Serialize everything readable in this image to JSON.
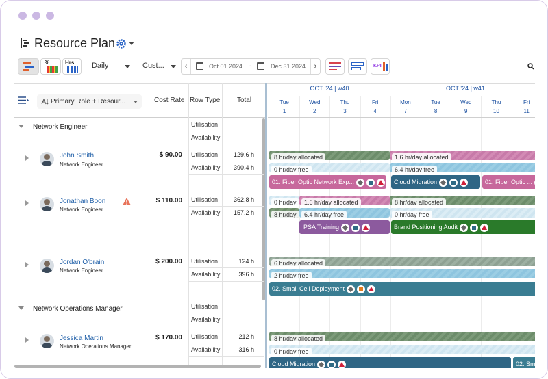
{
  "header": {
    "title": "Resource Plan"
  },
  "toolbar": {
    "percent_icon": "%",
    "hours_icon": "Hrs",
    "view": "Daily",
    "range": "Cust...",
    "start_date": "Oct 01 2024",
    "date_separator": "-",
    "end_date": "Dec 31 2024",
    "kpi_icon": "KPI"
  },
  "grid": {
    "group_by": "Primary Role + Resour...",
    "columns": [
      "Cost Rate",
      "Row Type",
      "Total"
    ]
  },
  "timeline": {
    "weeks": [
      "OCT '24 | w40",
      "OCT '24 | w41"
    ],
    "days": [
      {
        "name": "Tue",
        "date": "1"
      },
      {
        "name": "Wed",
        "date": "2"
      },
      {
        "name": "Thu",
        "date": "3"
      },
      {
        "name": "Fri",
        "date": "4"
      },
      {
        "name": "Mon",
        "date": "7"
      },
      {
        "name": "Tue",
        "date": "8"
      },
      {
        "name": "Wed",
        "date": "9"
      },
      {
        "name": "Thu",
        "date": "10"
      },
      {
        "name": "Fri",
        "date": "11"
      }
    ]
  },
  "groups": [
    {
      "name": "Network Engineer",
      "row_types": [
        "Utilisation",
        "Availability"
      ],
      "resources": [
        {
          "name": "John Smith",
          "role": "Network Engineer",
          "cost_rate": "$ 90.00",
          "row_types": [
            "Utilisation",
            "Availability"
          ],
          "totals": [
            "129.6 h",
            "390.4 h"
          ],
          "utilisation": [
            "8 hr/day allocated",
            "1.6 hr/day allocated"
          ],
          "availability": [
            "0 hr/day free",
            "6.4 hr/day free"
          ],
          "tasks": [
            "01. Fiber Optic Network Exp...",
            "Cloud Migration",
            "01. Fiber Optic ..."
          ]
        },
        {
          "name": "Jonathan Boon",
          "role": "Network Engineer",
          "cost_rate": "$ 110.00",
          "row_types": [
            "Utilisation",
            "Availability"
          ],
          "totals": [
            "362.8 h",
            "157.2 h"
          ],
          "utilisation": [
            "0 hr/day",
            "1.6 hr/day allocated",
            "8 hr/day allocated"
          ],
          "availability": [
            "8 hr/day",
            "6.4 hr/day free",
            "0 hr/day free"
          ],
          "tasks": [
            "PSA Training",
            "Brand Positioning Audit"
          ]
        },
        {
          "name": "Jordan O'brain",
          "role": "Network Engineer",
          "cost_rate": "$ 200.00",
          "row_types": [
            "Utilisation",
            "Availability"
          ],
          "totals": [
            "124 h",
            "396 h"
          ],
          "utilisation": [
            "6 hr/day allocated"
          ],
          "availability": [
            "2 hr/day free"
          ],
          "tasks": [
            "02. Small Cell Deployment"
          ]
        }
      ]
    },
    {
      "name": "Network Operations Manager",
      "row_types": [
        "Utilisation",
        "Availability"
      ],
      "resources": [
        {
          "name": "Jessica Martin",
          "role": "Network Operations Manager",
          "cost_rate": "$ 170.00",
          "row_types": [
            "Utilisation",
            "Availability"
          ],
          "totals": [
            "212 h",
            "316 h"
          ],
          "utilisation": [
            "8 hr/day allocated"
          ],
          "availability": [
            "0 hr/day free"
          ],
          "tasks": [
            "Cloud Migration",
            "02. Sm..."
          ]
        }
      ]
    }
  ]
}
